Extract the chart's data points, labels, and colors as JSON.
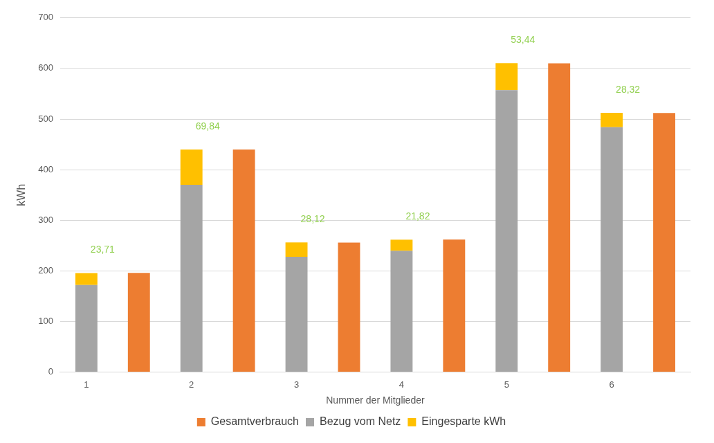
{
  "chart_data": {
    "type": "bar",
    "xlabel": "Nummer der Mitglieder",
    "ylabel": "kWh",
    "categories": [
      "1",
      null,
      "2",
      null,
      "3",
      null,
      "4",
      null,
      "5",
      null,
      "6",
      null
    ],
    "stacked": true,
    "series": [
      {
        "name": "Gesamtverbrauch",
        "color": "#ed7d31",
        "values": [
          null,
          196,
          null,
          440,
          null,
          256,
          null,
          262,
          null,
          610,
          null,
          512
        ]
      },
      {
        "name": "Bezug vom Netz",
        "color": "#a5a5a5",
        "values": [
          172,
          null,
          370,
          null,
          228,
          null,
          240,
          null,
          557,
          null,
          484,
          null
        ]
      },
      {
        "name": "Eingesparte kWh",
        "color": "#ffc000",
        "values": [
          23.71,
          null,
          69.84,
          null,
          28.12,
          null,
          21.82,
          null,
          53.44,
          null,
          28.32,
          null
        ],
        "value_labels": [
          "23,71",
          null,
          "69,84",
          null,
          "28,12",
          null,
          "21,82",
          null,
          "53,44",
          null,
          "28,32",
          null
        ]
      }
    ],
    "ylim": [
      0,
      700
    ],
    "yticks": [
      0,
      100,
      200,
      300,
      400,
      500,
      600,
      700
    ],
    "grid": "y",
    "legend": "bottom"
  }
}
